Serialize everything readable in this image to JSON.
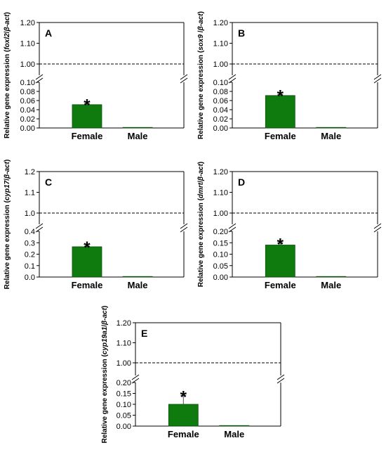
{
  "chart_data": [
    {
      "type": "bar",
      "panel_label": "A",
      "ylabel": {
        "prefix": "Relative gene expression (",
        "gene": "foxl2",
        "sep": "/",
        "ref": "β-act",
        "suffix": ")"
      },
      "categories": [
        "Female",
        "Male"
      ],
      "values": [
        0.051,
        0.001
      ],
      "errors": [
        0.002,
        0.0005
      ],
      "significance": [
        "*",
        ""
      ],
      "upper_ticks": [
        "1.20",
        "1.10",
        "1.00",
        "0.10"
      ],
      "lower_ticks": [
        "0.08",
        "0.06",
        "0.04",
        "0.02",
        "0.00"
      ],
      "lower_ylim": [
        0,
        0.1
      ],
      "upper_ylim": [
        0.95,
        1.2
      ],
      "reference_line": 1.0,
      "bar_color": "#0f7b0f"
    },
    {
      "type": "bar",
      "panel_label": "B",
      "ylabel": {
        "prefix": "Relative gene expression (",
        "gene": "sox9",
        "sep": " /",
        "ref": "β-act",
        "suffix": ")"
      },
      "categories": [
        "Female",
        "Male"
      ],
      "values": [
        0.071,
        0.001
      ],
      "errors": [
        0.002,
        0.0005
      ],
      "significance": [
        "*",
        ""
      ],
      "upper_ticks": [
        "1.20",
        "1.10",
        "1.00",
        "0.10"
      ],
      "lower_ticks": [
        "0.08",
        "0.06",
        "0.04",
        "0.02",
        "0.00"
      ],
      "lower_ylim": [
        0,
        0.1
      ],
      "upper_ylim": [
        0.95,
        1.2
      ],
      "reference_line": 1.0,
      "bar_color": "#0f7b0f"
    },
    {
      "type": "bar",
      "panel_label": "C",
      "ylabel": {
        "prefix": "Relative gene expression (",
        "gene": "cyp17",
        "sep": "/",
        "ref": "β-act",
        "suffix": ")"
      },
      "categories": [
        "Female",
        "Male"
      ],
      "values": [
        0.265,
        0.002
      ],
      "errors": [
        0.006,
        0.001
      ],
      "significance": [
        "*",
        ""
      ],
      "upper_ticks": [
        "1.2",
        "1.1",
        "1.0",
        "0.4"
      ],
      "lower_ticks": [
        "0.3",
        "0.2",
        "0.1",
        "0.0"
      ],
      "lower_ylim": [
        0,
        0.4
      ],
      "upper_ylim": [
        0.95,
        1.2
      ],
      "reference_line": 1.0,
      "bar_color": "#0f7b0f"
    },
    {
      "type": "bar",
      "panel_label": "D",
      "ylabel": {
        "prefix": "Relative gene expression (",
        "gene": "dmrt",
        "sep": "/",
        "ref": "β-act",
        "suffix": ")"
      },
      "categories": [
        "Female",
        "Male"
      ],
      "values": [
        0.14,
        0.001
      ],
      "errors": [
        0.01,
        0.0005
      ],
      "significance": [
        "*",
        ""
      ],
      "upper_ticks": [
        "1.20",
        "1.10",
        "1.00",
        "0.20"
      ],
      "lower_ticks": [
        "0.15",
        "0.10",
        "0.05",
        "0.00"
      ],
      "lower_ylim": [
        0,
        0.2
      ],
      "upper_ylim": [
        0.95,
        1.2
      ],
      "reference_line": 1.0,
      "bar_color": "#0f7b0f"
    },
    {
      "type": "bar",
      "panel_label": "E",
      "ylabel": {
        "prefix": "Relative gene expression (",
        "gene": "cyp19a1",
        "sep": "/",
        "ref": "β-act",
        "suffix": ")"
      },
      "categories": [
        "Female",
        "Male"
      ],
      "values": [
        0.1,
        0.001
      ],
      "errors": [
        0.04,
        0.0005
      ],
      "significance": [
        "*",
        ""
      ],
      "upper_ticks": [
        "1.20",
        "1.10",
        "1.00",
        "0.20"
      ],
      "lower_ticks": [
        "0.15",
        "0.10",
        "0.05",
        "0.00"
      ],
      "lower_ylim": [
        0,
        0.2
      ],
      "upper_ylim": [
        0.95,
        1.2
      ],
      "reference_line": 1.0,
      "bar_color": "#0f7b0f"
    }
  ]
}
